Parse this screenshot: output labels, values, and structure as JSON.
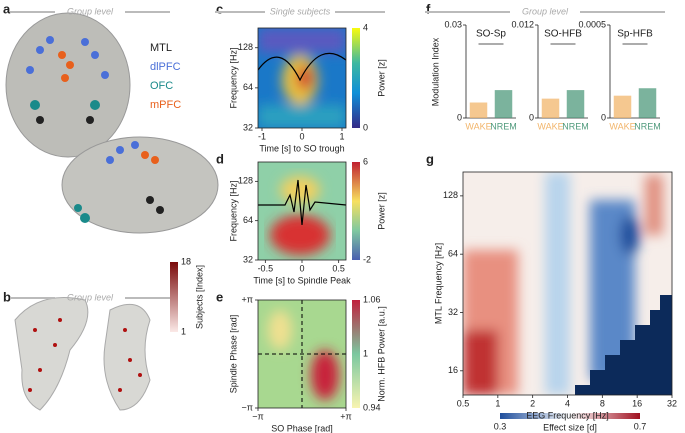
{
  "panel_letters": [
    "a",
    "b",
    "c",
    "d",
    "e",
    "f",
    "g"
  ],
  "a": {
    "title": "Group level",
    "legend": [
      {
        "name": "MTL",
        "color": "#222222"
      },
      {
        "name": "dlPFC",
        "color": "#4a6fd8"
      },
      {
        "name": "OFC",
        "color": "#1a8a8a"
      },
      {
        "name": "mPFC",
        "color": "#e8601c"
      }
    ]
  },
  "b": {
    "title": "Group level",
    "colorbar": {
      "label": "Subjects [Index]",
      "lim": [
        1,
        18
      ],
      "ticks": [
        1,
        18
      ]
    }
  },
  "c": {
    "title": "Single subjects",
    "ylabel": "Frequency [Hz]",
    "xlabel": "Time [s] to SO trough",
    "xlim": [
      -1.1,
      1.1
    ],
    "xticks": [
      -1,
      0,
      1
    ],
    "ylim": [
      32,
      180
    ],
    "yticks": [
      32,
      64,
      128
    ],
    "log_y": true,
    "colorbar": {
      "label": "Power [z]",
      "lim": [
        0,
        4
      ],
      "ticks": [
        0,
        4
      ]
    }
  },
  "d": {
    "ylabel": "Frequency [Hz]",
    "xlabel": "Time [s] to Spindle Peak",
    "xlim": [
      -0.6,
      0.6
    ],
    "xticks": [
      -0.5,
      0,
      0.5
    ],
    "ylim": [
      32,
      180
    ],
    "yticks": [
      32,
      64,
      128
    ],
    "log_y": true,
    "colorbar": {
      "label": "Power [z]",
      "lim": [
        -2,
        6
      ],
      "ticks": [
        -2,
        6
      ]
    }
  },
  "e": {
    "ylabel": "Spindle Phase [rad]",
    "xlabel": "SO Phase [rad]",
    "xlim": [
      -3.1416,
      3.1416
    ],
    "xticks": [
      {
        "value": -3.1416,
        "label": "−π"
      },
      {
        "value": 3.1416,
        "label": "+π"
      }
    ],
    "ylim": [
      -3.1416,
      3.1416
    ],
    "yticks": [
      {
        "value": -3.1416,
        "label": "−π"
      },
      {
        "value": 3.1416,
        "label": "+π"
      }
    ],
    "colorbar": {
      "label": "Norm. HFB Power [a.u.]",
      "lim": [
        0.94,
        1.06
      ],
      "ticks": [
        0.94,
        1,
        1.06
      ]
    }
  },
  "f": {
    "title": "Group level",
    "ylabel": "Modulation Index"
  },
  "g": {
    "ylabel": "MTL Frequency [Hz]",
    "xlabel": "EEG Frequency [Hz]",
    "xlim": [
      0.5,
      32
    ],
    "xticks": [
      0.5,
      1,
      2,
      4,
      8,
      16,
      32
    ],
    "log_x": true,
    "ylim": [
      12,
      170
    ],
    "yticks": [
      16,
      32,
      64,
      128
    ],
    "log_y": true,
    "colorbar": {
      "label": "Effect size [d]",
      "lim": [
        0.3,
        0.7
      ],
      "ticks": [
        0.3,
        0.7
      ]
    }
  },
  "chart_data": [
    {
      "type": "bar",
      "title": "SO-Sp",
      "categories": [
        "WAKE",
        "NREM"
      ],
      "colors": [
        "#f2b56b",
        "#4f9a7c"
      ],
      "values": [
        0.005,
        0.009
      ],
      "ylim": [
        0,
        0.03
      ],
      "yticks": [
        0,
        0.03
      ]
    },
    {
      "type": "bar",
      "title": "SO-HFB",
      "categories": [
        "WAKE",
        "NREM"
      ],
      "colors": [
        "#f2b56b",
        "#4f9a7c"
      ],
      "values": [
        0.0025,
        0.0036
      ],
      "ylim": [
        0,
        0.012
      ],
      "yticks": [
        0,
        0.012
      ]
    },
    {
      "type": "bar",
      "title": "Sp-HFB",
      "categories": [
        "WAKE",
        "NREM"
      ],
      "colors": [
        "#f2b56b",
        "#4f9a7c"
      ],
      "values": [
        0.00012,
        0.00016
      ],
      "ylim": [
        0,
        0.0005
      ],
      "yticks": [
        0,
        0.0005
      ]
    }
  ]
}
